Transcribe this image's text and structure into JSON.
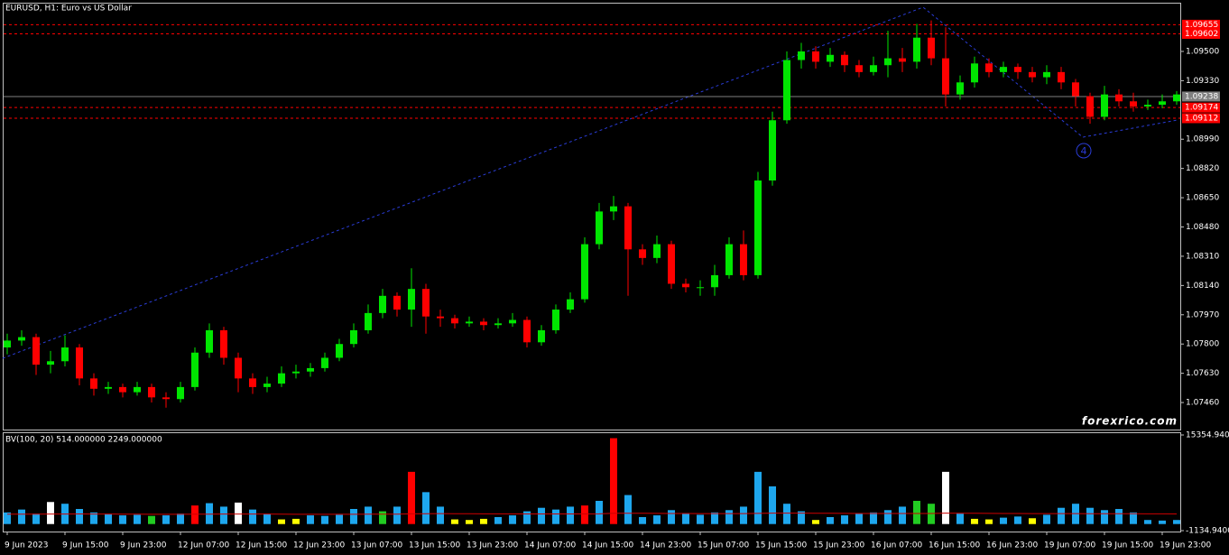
{
  "chart_data": [
    {
      "type": "candlestick",
      "title": "EURUSD, H1:  Euro vs US Dollar",
      "watermark": "forexrico.com",
      "annotations": [
        "4"
      ],
      "categories": [
        "9 Jun 2023",
        null,
        null,
        null,
        "9 Jun 15:00",
        null,
        null,
        null,
        "9 Jun 23:00",
        null,
        null,
        null,
        "12 Jun 07:00",
        null,
        null,
        null,
        "12 Jun 15:00",
        null,
        null,
        null,
        "12 Jun 23:00",
        null,
        null,
        null,
        "13 Jun 07:00",
        null,
        null,
        null,
        "13 Jun 15:00",
        null,
        null,
        null,
        "13 Jun 23:00",
        null,
        null,
        null,
        "14 Jun 07:00",
        null,
        null,
        null,
        "14 Jun 15:00",
        null,
        null,
        null,
        "14 Jun 23:00",
        null,
        null,
        null,
        "15 Jun 07:00",
        null,
        null,
        null,
        "15 Jun 15:00",
        null,
        null,
        null,
        "15 Jun 23:00",
        null,
        null,
        null,
        "16 Jun 07:00",
        null,
        null,
        null,
        "16 Jun 15:00",
        null,
        null,
        null,
        "16 Jun 23:00",
        null,
        null,
        null,
        "19 Jun 07:00",
        null,
        null,
        null,
        "19 Jun 15:00",
        null,
        null,
        null,
        "19 Jun 23:00",
        null
      ],
      "open": [
        1.0778,
        1.0782,
        1.0784,
        1.0768,
        1.077,
        1.0778,
        1.076,
        1.0754,
        1.0755,
        1.0752,
        1.0755,
        1.0749,
        1.0748,
        1.0755,
        1.0775,
        1.0788,
        1.0772,
        1.076,
        1.0755,
        1.0757,
        1.0763,
        1.0764,
        1.0766,
        1.0772,
        1.078,
        1.0788,
        1.0798,
        1.0808,
        1.08,
        1.0812,
        1.0796,
        1.0795,
        1.0792,
        1.0793,
        1.0791,
        1.0792,
        1.0794,
        1.0781,
        1.0788,
        1.08,
        1.0806,
        1.0838,
        1.0857,
        1.086,
        1.0835,
        1.083,
        1.0838,
        1.0815,
        1.0813,
        1.0813,
        1.082,
        1.0838,
        1.082,
        1.0875,
        1.091,
        1.0945,
        1.095,
        1.0944,
        1.0948,
        1.0942,
        1.0938,
        1.0942,
        1.0946,
        1.0944,
        1.0958,
        1.0946,
        1.0925,
        1.0932,
        1.0943,
        1.0938,
        1.0941,
        1.0938,
        1.0935,
        1.0938,
        1.0932,
        1.0924,
        1.0912,
        1.0925,
        1.0921,
        1.0918,
        1.0919,
        1.0921
      ],
      "high": [
        1.0786,
        1.0788,
        1.0786,
        1.0776,
        1.0785,
        1.078,
        1.0763,
        1.0758,
        1.0757,
        1.0758,
        1.0757,
        1.0752,
        1.0758,
        1.0778,
        1.0792,
        1.079,
        1.0775,
        1.0763,
        1.0761,
        1.0767,
        1.0768,
        1.0769,
        1.0775,
        1.0783,
        1.0792,
        1.0803,
        1.0812,
        1.081,
        1.0824,
        1.0815,
        1.08,
        1.0797,
        1.0796,
        1.0795,
        1.0795,
        1.0798,
        1.0796,
        1.0791,
        1.0803,
        1.081,
        1.0842,
        1.0862,
        1.0866,
        1.0862,
        1.0838,
        1.0843,
        1.084,
        1.0818,
        1.0817,
        1.0826,
        1.0842,
        1.0846,
        1.088,
        1.0915,
        1.095,
        1.0955,
        1.0953,
        1.0952,
        1.095,
        1.0945,
        1.0947,
        1.0962,
        1.0952,
        1.0966,
        1.0968,
        1.0964,
        1.0936,
        1.0947,
        1.0946,
        1.0944,
        1.0943,
        1.0941,
        1.0942,
        1.0941,
        1.0934,
        1.0926,
        1.093,
        1.0928,
        1.0926,
        1.0922,
        1.0925,
        1.0927
      ],
      "low": [
        1.0774,
        1.0779,
        1.0762,
        1.0763,
        1.0767,
        1.0756,
        1.075,
        1.0751,
        1.0749,
        1.075,
        1.0746,
        1.0743,
        1.0746,
        1.0753,
        1.0772,
        1.0768,
        1.0752,
        1.0751,
        1.0752,
        1.0755,
        1.076,
        1.0761,
        1.0764,
        1.077,
        1.0778,
        1.0786,
        1.0795,
        1.0796,
        1.079,
        1.0786,
        1.079,
        1.0789,
        1.079,
        1.0788,
        1.0789,
        1.079,
        1.0778,
        1.0779,
        1.0786,
        1.0798,
        1.0804,
        1.0835,
        1.0852,
        1.0808,
        1.0826,
        1.0827,
        1.0812,
        1.081,
        1.0808,
        1.0808,
        1.0818,
        1.0817,
        1.0818,
        1.0872,
        1.0908,
        1.094,
        1.094,
        1.0941,
        1.0938,
        1.0935,
        1.0936,
        1.0935,
        1.0938,
        1.094,
        1.0942,
        1.0918,
        1.0922,
        1.0929,
        1.0935,
        1.0935,
        1.0934,
        1.0932,
        1.0931,
        1.0928,
        1.0918,
        1.0908,
        1.091,
        1.0918,
        1.0915,
        1.0916,
        1.0917,
        1.0919
      ],
      "close": [
        1.0782,
        1.0784,
        1.0768,
        1.077,
        1.0778,
        1.076,
        1.0754,
        1.0755,
        1.0752,
        1.0755,
        1.0749,
        1.0748,
        1.0755,
        1.0775,
        1.0788,
        1.0772,
        1.076,
        1.0755,
        1.0757,
        1.0763,
        1.0764,
        1.0766,
        1.0772,
        1.078,
        1.0788,
        1.0798,
        1.0808,
        1.08,
        1.0812,
        1.0796,
        1.0795,
        1.0792,
        1.0793,
        1.0791,
        1.0792,
        1.0794,
        1.0781,
        1.0788,
        1.08,
        1.0806,
        1.0838,
        1.0857,
        1.086,
        1.0835,
        1.083,
        1.0838,
        1.0815,
        1.0813,
        1.0813,
        1.082,
        1.0838,
        1.082,
        1.0875,
        1.091,
        1.0945,
        1.095,
        1.0944,
        1.0948,
        1.0942,
        1.0938,
        1.0942,
        1.0946,
        1.0944,
        1.0958,
        1.0946,
        1.0925,
        1.0932,
        1.0943,
        1.0938,
        1.0941,
        1.0938,
        1.0935,
        1.0938,
        1.0932,
        1.0924,
        1.0912,
        1.0925,
        1.0921,
        1.0918,
        1.0919,
        1.0921,
        1.0925
      ],
      "bull_color": "#00e600",
      "bear_color": "#ff0000",
      "ylim": [
        1.07303,
        1.09783
      ],
      "yticks": [
        {
          "value": 1.095,
          "label": "1.09500"
        },
        {
          "value": 1.0933,
          "label": "1.09330"
        },
        {
          "value": 1.0899,
          "label": "1.08990"
        },
        {
          "value": 1.0882,
          "label": "1.08820"
        },
        {
          "value": 1.0865,
          "label": "1.08650"
        },
        {
          "value": 1.0848,
          "label": "1.08480"
        },
        {
          "value": 1.0831,
          "label": "1.08310"
        },
        {
          "value": 1.0814,
          "label": "1.08140"
        },
        {
          "value": 1.0797,
          "label": "1.07970"
        },
        {
          "value": 1.078,
          "label": "1.07800"
        },
        {
          "value": 1.0763,
          "label": "1.07630"
        },
        {
          "value": 1.0746,
          "label": "1.07460"
        }
      ],
      "levels": [
        {
          "value": 1.09655,
          "color": "#ff0000"
        },
        {
          "value": 1.09602,
          "color": "#ff0000"
        },
        {
          "value": 1.09238,
          "color": "#808080"
        },
        {
          "value": 1.09174,
          "color": "#ff0000"
        },
        {
          "value": 1.09112,
          "color": "#ff0000"
        }
      ]
    },
    {
      "type": "bar",
      "title": "BV(100, 20) 514.000000 2249.000000",
      "values": [
        2000,
        2500,
        1800,
        3800,
        3500,
        2600,
        2000,
        1700,
        1500,
        1600,
        1400,
        1500,
        1800,
        3200,
        3600,
        3000,
        3700,
        2500,
        1800,
        800,
        900,
        1500,
        1400,
        1600,
        2600,
        3000,
        2200,
        3000,
        9000,
        5500,
        3000,
        800,
        700,
        900,
        1200,
        1500,
        2200,
        2800,
        2500,
        3000,
        3200,
        4000,
        14800,
        5000,
        1200,
        1500,
        2400,
        1800,
        1600,
        2000,
        2400,
        3000,
        9000,
        6500,
        3500,
        2200,
        700,
        1200,
        1500,
        1800,
        2000,
        2400,
        3000,
        4000,
        3500,
        9000,
        1800,
        900,
        800,
        1100,
        1300,
        1000,
        1600,
        2800,
        3500,
        2800,
        2400,
        2600,
        2000,
        700,
        600,
        700
      ],
      "colors": [
        "#1ea7ee",
        "#1ea7ee",
        "#1ea7ee",
        "#ffffff",
        "#1ea7ee",
        "#1ea7ee",
        "#1ea7ee",
        "#1ea7ee",
        "#1ea7ee",
        "#1ea7ee",
        "#22cc22",
        "#1ea7ee",
        "#1ea7ee",
        "#ff0000",
        "#1ea7ee",
        "#1ea7ee",
        "#ffffff",
        "#1ea7ee",
        "#1ea7ee",
        "#ffff00",
        "#ffff00",
        "#1ea7ee",
        "#1ea7ee",
        "#1ea7ee",
        "#1ea7ee",
        "#1ea7ee",
        "#22cc22",
        "#1ea7ee",
        "#ff0000",
        "#1ea7ee",
        "#1ea7ee",
        "#ffff00",
        "#ffff00",
        "#ffff00",
        "#1ea7ee",
        "#1ea7ee",
        "#1ea7ee",
        "#1ea7ee",
        "#1ea7ee",
        "#1ea7ee",
        "#ff0000",
        "#1ea7ee",
        "#ff0000",
        "#1ea7ee",
        "#1ea7ee",
        "#1ea7ee",
        "#1ea7ee",
        "#1ea7ee",
        "#1ea7ee",
        "#1ea7ee",
        "#1ea7ee",
        "#1ea7ee",
        "#1ea7ee",
        "#1ea7ee",
        "#1ea7ee",
        "#1ea7ee",
        "#ffff00",
        "#1ea7ee",
        "#1ea7ee",
        "#1ea7ee",
        "#1ea7ee",
        "#1ea7ee",
        "#1ea7ee",
        "#22cc22",
        "#22cc22",
        "#ffffff",
        "#1ea7ee",
        "#ffff00",
        "#ffff00",
        "#1ea7ee",
        "#1ea7ee",
        "#ffff00",
        "#1ea7ee",
        "#1ea7ee",
        "#1ea7ee",
        "#1ea7ee",
        "#1ea7ee",
        "#1ea7ee",
        "#1ea7ee",
        "#1ea7ee",
        "#1ea7ee",
        "#1ea7ee"
      ],
      "ma": {
        "color": "#cc0000",
        "values": [
          1700,
          1710,
          1705,
          1720,
          1730,
          1735,
          1730,
          1720,
          1710,
          1700,
          1690,
          1685,
          1690,
          1700,
          1710,
          1720,
          1730,
          1725,
          1715,
          1700,
          1690,
          1685,
          1680,
          1685,
          1690,
          1700,
          1705,
          1710,
          1760,
          1790,
          1800,
          1790,
          1780,
          1770,
          1760,
          1755,
          1750,
          1748,
          1746,
          1748,
          1750,
          1760,
          1850,
          1860,
          1850,
          1840,
          1830,
          1820,
          1810,
          1800,
          1795,
          1795,
          1840,
          1870,
          1880,
          1875,
          1860,
          1850,
          1840,
          1830,
          1820,
          1815,
          1815,
          1825,
          1830,
          1870,
          1860,
          1850,
          1840,
          1830,
          1820,
          1810,
          1800,
          1795,
          1795,
          1790,
          1785,
          1780,
          1775,
          1765,
          1755,
          1745
        ]
      },
      "ylim": [
        -1134.94,
        15354.94
      ],
      "yticks": [
        {
          "value": 15354.94,
          "label": "15354.9400"
        },
        {
          "value": -1134.94,
          "label": "-1134.9400"
        }
      ]
    }
  ]
}
